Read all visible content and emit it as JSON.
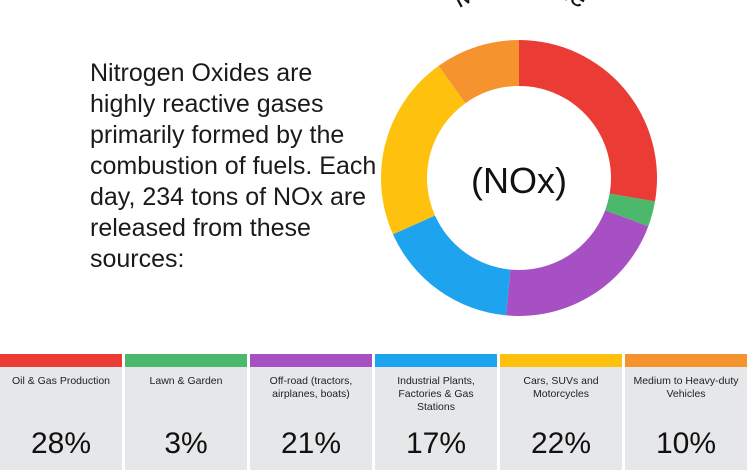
{
  "intro_text": "Nitrogen Oxides are highly reactive gases primarily formed by the combustion of fuels. Each day, 234 tons of NOx are released from these sources:",
  "chart_data": {
    "type": "pie",
    "donut": true,
    "title": "Man-Made",
    "center_label": "(NOx)",
    "categories": [
      "Oil & Gas Production",
      "Lawn & Garden",
      "Off-road (tractors, airplanes, boats)",
      "Industrial Plants, Factories & Gas Stations",
      "Cars, SUVs and Motorcycles",
      "Medium to Heavy-duty Vehicles"
    ],
    "values": [
      28,
      3,
      21,
      17,
      22,
      10
    ],
    "value_labels": [
      "28%",
      "3%",
      "21%",
      "17%",
      "22%",
      "10%"
    ],
    "colors": [
      "#ea3b34",
      "#4bb86b",
      "#a650c3",
      "#1ea4ef",
      "#fec20e",
      "#f5942f"
    ]
  },
  "cards": [
    {
      "label": "Oil & Gas Production",
      "value": "28%",
      "color": "#ea3b34"
    },
    {
      "label": "Lawn & Garden",
      "value": "3%",
      "color": "#4bb86b"
    },
    {
      "label": "Off-road (tractors, airplanes, boats)",
      "value": "21%",
      "color": "#a650c3"
    },
    {
      "label": "Industrial Plants, Factories & Gas Stations",
      "value": "17%",
      "color": "#1ea4ef"
    },
    {
      "label": "Cars, SUVs and Motorcycles",
      "value": "22%",
      "color": "#fec20e"
    },
    {
      "label": "Medium to Heavy-duty Vehicles",
      "value": "10%",
      "color": "#f5942f"
    }
  ]
}
